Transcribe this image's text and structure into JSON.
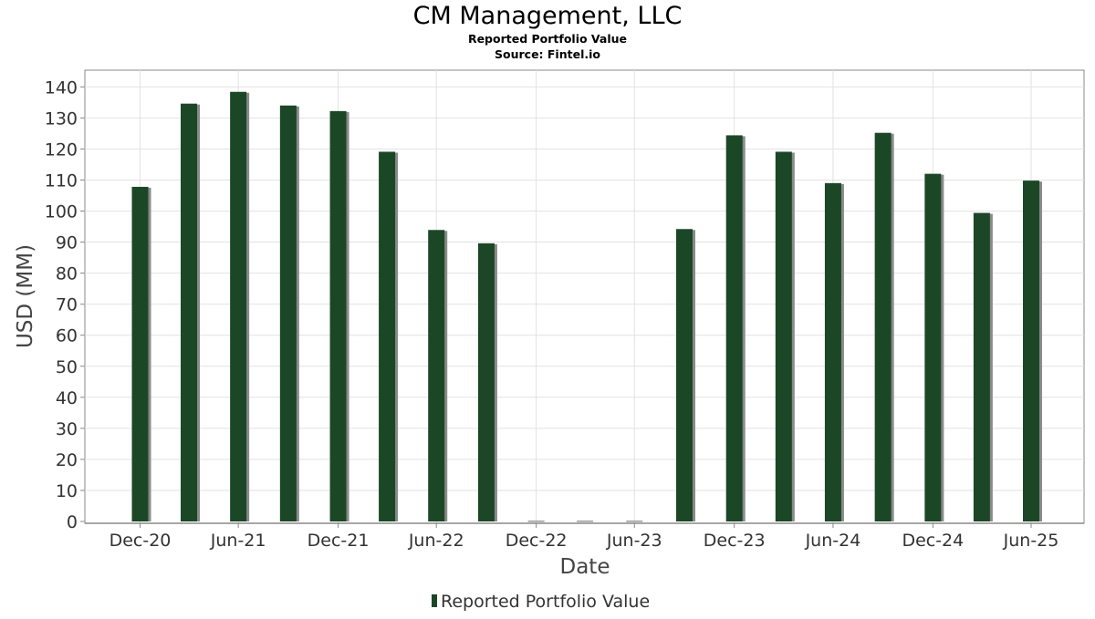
{
  "chart_data": {
    "type": "bar",
    "title": "CM Management, LLC",
    "subtitle": "Reported Portfolio Value",
    "source": "Source: Fintel.io",
    "xlabel": "Date",
    "ylabel": "USD (MM)",
    "ylim": [
      0,
      145
    ],
    "yticks": [
      0,
      10,
      20,
      30,
      40,
      50,
      60,
      70,
      80,
      90,
      100,
      110,
      120,
      130,
      140
    ],
    "grid": true,
    "legend_position": "bottom-center",
    "series": [
      {
        "name": "Reported Portfolio Value",
        "color": "#1b4726",
        "values": [
          {
            "x": "2020-12-31",
            "y": 107.8
          },
          {
            "x": "2021-03-31",
            "y": 134.6
          },
          {
            "x": "2021-06-30",
            "y": 138.4
          },
          {
            "x": "2021-09-30",
            "y": 134.0
          },
          {
            "x": "2021-12-31",
            "y": 132.2
          },
          {
            "x": "2022-03-31",
            "y": 119.1
          },
          {
            "x": "2022-06-30",
            "y": 93.9
          },
          {
            "x": "2022-09-30",
            "y": 89.6
          },
          {
            "x": "2022-12-31",
            "y": 0
          },
          {
            "x": "2023-03-31",
            "y": 0
          },
          {
            "x": "2023-06-30",
            "y": 0
          },
          {
            "x": "2023-09-30",
            "y": 94.2
          },
          {
            "x": "2023-12-31",
            "y": 124.4
          },
          {
            "x": "2024-03-31",
            "y": 119.1
          },
          {
            "x": "2024-06-30",
            "y": 109.0
          },
          {
            "x": "2024-09-30",
            "y": 125.2
          },
          {
            "x": "2024-12-31",
            "y": 112.0
          },
          {
            "x": "2025-03-31",
            "y": 99.4
          },
          {
            "x": "2025-06-30",
            "y": 109.8
          }
        ]
      }
    ],
    "xticks": [
      {
        "label": "Dec-20",
        "date": "2020-12-31"
      },
      {
        "label": "Jun-21",
        "date": "2021-06-30"
      },
      {
        "label": "Dec-21",
        "date": "2021-12-31"
      },
      {
        "label": "Jun-22",
        "date": "2022-06-30"
      },
      {
        "label": "Dec-22",
        "date": "2022-12-31"
      },
      {
        "label": "Jun-23",
        "date": "2023-06-30"
      },
      {
        "label": "Dec-23",
        "date": "2023-12-31"
      },
      {
        "label": "Jun-24",
        "date": "2024-06-30"
      },
      {
        "label": "Dec-24",
        "date": "2024-12-31"
      },
      {
        "label": "Jun-25",
        "date": "2025-06-30"
      }
    ]
  }
}
